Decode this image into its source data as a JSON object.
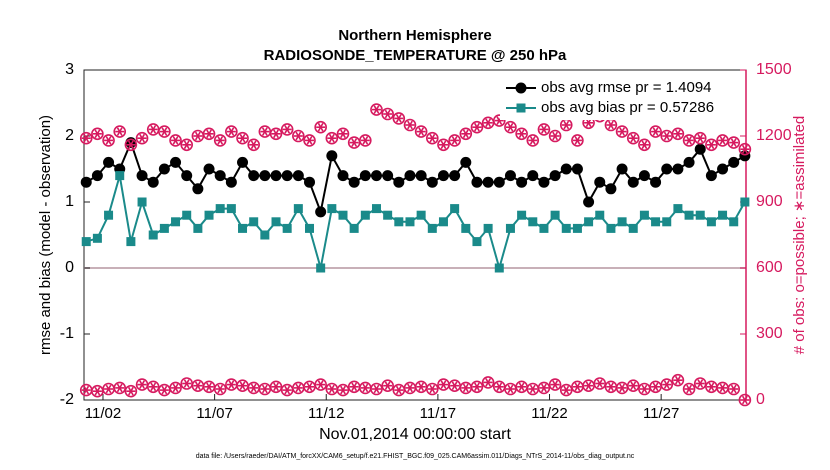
{
  "chart_data": {
    "type": "line",
    "title": "Northern Hemisphere",
    "subtitle": "RADIOSONDE_TEMPERATURE @ 250 hPa",
    "xlabel": "Nov.01,2014 00:00:00 start",
    "ylabel": "rmse and bias (model - observation)",
    "y2label": "# of obs: o=possible; ∗=assimilated",
    "footnote": "data file: /Users/raeder/DAI/ATM_forcXX/CAM6_setup/f.e21.FHIST_BGC.f09_025.CAM6assim.011/Diags_NTrS_2014-11/obs_diag_output.nc",
    "x": [
      0.25,
      0.75,
      1.25,
      1.75,
      2.25,
      2.75,
      3.25,
      3.75,
      4.25,
      4.75,
      5.25,
      5.75,
      6.25,
      6.75,
      7.25,
      7.75,
      8.25,
      8.75,
      9.25,
      9.75,
      10.25,
      10.75,
      11.25,
      11.75,
      12.25,
      12.75,
      13.25,
      13.75,
      14.25,
      14.75,
      15.25,
      15.75,
      16.25,
      16.75,
      17.25,
      17.75,
      18.25,
      18.75,
      19.25,
      19.75,
      20.25,
      20.75,
      21.25,
      21.75,
      22.25,
      22.75,
      23.25,
      23.75,
      24.25,
      24.75,
      25.25,
      25.75,
      26.25,
      26.75,
      27.25,
      27.75,
      28.25,
      28.75,
      29.25,
      29.75
    ],
    "xlim": [
      0.15,
      29.8
    ],
    "xticks": [
      {
        "value": 1,
        "label": "11/02"
      },
      {
        "value": 6,
        "label": "11/07"
      },
      {
        "value": 11,
        "label": "11/12"
      },
      {
        "value": 16,
        "label": "11/17"
      },
      {
        "value": 21,
        "label": "11/22"
      },
      {
        "value": 26,
        "label": "11/27"
      }
    ],
    "ylim": [
      -2,
      3
    ],
    "yticks": [
      -2,
      -1,
      0,
      1,
      2,
      3
    ],
    "y2lim": [
      0,
      1500
    ],
    "y2ticks": [
      0,
      300,
      600,
      900,
      1200,
      1500
    ],
    "zero_line": 0,
    "series": [
      {
        "name": "obs avg rmse pr = 1.4094",
        "color": "#000000",
        "marker": "circle",
        "values": [
          1.3,
          1.4,
          1.6,
          1.5,
          1.9,
          1.4,
          1.3,
          1.5,
          1.6,
          1.4,
          1.2,
          1.5,
          1.4,
          1.3,
          1.6,
          1.4,
          1.4,
          1.4,
          1.4,
          1.4,
          1.3,
          0.85,
          1.7,
          1.4,
          1.3,
          1.4,
          1.4,
          1.4,
          1.3,
          1.4,
          1.4,
          1.3,
          1.4,
          1.4,
          1.6,
          1.3,
          1.3,
          1.3,
          1.4,
          1.3,
          1.4,
          1.3,
          1.4,
          1.5,
          1.5,
          1.0,
          1.3,
          1.2,
          1.5,
          1.3,
          1.4,
          1.3,
          1.5,
          1.5,
          1.6,
          1.8,
          1.4,
          1.5,
          1.6,
          1.7
        ]
      },
      {
        "name": "obs avg bias pr = 0.57286",
        "color": "#1a8a8a",
        "marker": "square",
        "values": [
          0.4,
          0.45,
          0.8,
          1.4,
          0.4,
          1.0,
          0.5,
          0.6,
          0.7,
          0.8,
          0.6,
          0.8,
          0.9,
          0.9,
          0.6,
          0.7,
          0.5,
          0.7,
          0.6,
          0.9,
          0.6,
          0.0,
          0.9,
          0.8,
          0.6,
          0.8,
          0.9,
          0.8,
          0.7,
          0.7,
          0.8,
          0.6,
          0.7,
          0.9,
          0.6,
          0.4,
          0.6,
          0.0,
          0.6,
          0.8,
          0.7,
          0.6,
          0.8,
          0.6,
          0.6,
          0.7,
          0.8,
          0.6,
          0.7,
          0.6,
          0.8,
          0.7,
          0.7,
          0.9,
          0.8,
          0.8,
          0.7,
          0.8,
          0.7,
          1.0
        ]
      },
      {
        "color": "#d61a5f",
        "marker": "star-circle",
        "axis": "y2",
        "values": [
          1190,
          1210,
          1180,
          1220,
          1160,
          1190,
          1230,
          1220,
          1180,
          1160,
          1200,
          1210,
          1180,
          1220,
          1190,
          1160,
          1220,
          1210,
          1230,
          1200,
          1180,
          1240,
          1190,
          1210,
          1170,
          1180,
          1320,
          1300,
          1280,
          1250,
          1220,
          1190,
          1160,
          1180,
          1210,
          1240,
          1260,
          1270,
          1240,
          1210,
          1180,
          1230,
          1200,
          1250,
          1180,
          1260,
          1290,
          1250,
          1220,
          1190,
          1160,
          1220,
          1200,
          1210,
          1180,
          1190,
          1160,
          1180,
          1170,
          1140
        ]
      },
      {
        "color": "#d61a5f",
        "marker": "star-circle",
        "axis": "y2",
        "values": [
          45,
          40,
          50,
          55,
          40,
          70,
          60,
          45,
          55,
          75,
          65,
          60,
          50,
          70,
          65,
          55,
          50,
          60,
          45,
          55,
          60,
          70,
          50,
          45,
          60,
          55,
          50,
          65,
          45,
          55,
          60,
          50,
          70,
          65,
          55,
          60,
          80,
          60,
          50,
          60,
          50,
          55,
          70,
          45,
          60,
          65,
          75,
          60,
          55,
          65,
          50,
          60,
          70,
          90,
          50,
          75,
          60,
          55,
          50,
          0
        ]
      }
    ]
  }
}
